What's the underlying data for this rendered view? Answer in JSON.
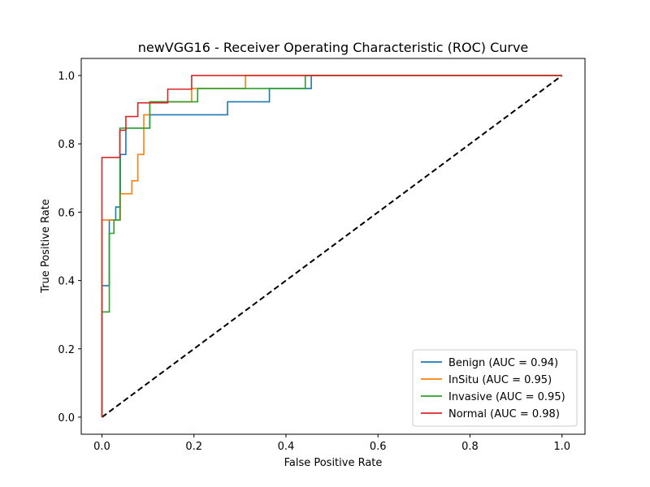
{
  "chart_data": {
    "type": "line",
    "title": "newVGG16 - Receiver Operating Characteristic (ROC) Curve",
    "xlabel": "False Positive Rate",
    "ylabel": "True Positive Rate",
    "xlim": [
      -0.045,
      1.05
    ],
    "ylim": [
      -0.05,
      1.05
    ],
    "xticks": [
      0.0,
      0.2,
      0.4,
      0.6,
      0.8,
      1.0
    ],
    "yticks": [
      0.0,
      0.2,
      0.4,
      0.6,
      0.8,
      1.0
    ],
    "xtick_labels": [
      "0.0",
      "0.2",
      "0.4",
      "0.6",
      "0.8",
      "1.0"
    ],
    "ytick_labels": [
      "0.0",
      "0.2",
      "0.4",
      "0.6",
      "0.8",
      "1.0"
    ],
    "grid": false,
    "legend_position": "lower-right",
    "series": [
      {
        "name": "Benign (AUC = 0.94)",
        "color": "#1f77b4",
        "points": [
          [
            0,
            0
          ],
          [
            0,
            0.385
          ],
          [
            0.016,
            0.385
          ],
          [
            0.016,
            0.538
          ],
          [
            0.016,
            0.577
          ],
          [
            0.03,
            0.577
          ],
          [
            0.03,
            0.615
          ],
          [
            0.04,
            0.615
          ],
          [
            0.04,
            0.769
          ],
          [
            0.052,
            0.769
          ],
          [
            0.052,
            0.846
          ],
          [
            0.104,
            0.846
          ],
          [
            0.104,
            0.885
          ],
          [
            0.273,
            0.885
          ],
          [
            0.273,
            0.923
          ],
          [
            0.364,
            0.923
          ],
          [
            0.364,
            0.962
          ],
          [
            0.455,
            0.962
          ],
          [
            0.455,
            1.0
          ],
          [
            1.0,
            1.0
          ]
        ]
      },
      {
        "name": "InSitu (AUC = 0.95)",
        "color": "#ff7f0e",
        "points": [
          [
            0,
            0
          ],
          [
            0,
            0.577
          ],
          [
            0.04,
            0.577
          ],
          [
            0.04,
            0.654
          ],
          [
            0.065,
            0.654
          ],
          [
            0.065,
            0.692
          ],
          [
            0.078,
            0.692
          ],
          [
            0.078,
            0.769
          ],
          [
            0.091,
            0.769
          ],
          [
            0.091,
            0.885
          ],
          [
            0.104,
            0.885
          ],
          [
            0.104,
            0.923
          ],
          [
            0.195,
            0.923
          ],
          [
            0.195,
            0.962
          ],
          [
            0.312,
            0.962
          ],
          [
            0.312,
            1.0
          ],
          [
            1.0,
            1.0
          ]
        ]
      },
      {
        "name": "Invasive (AUC = 0.95)",
        "color": "#2ca02c",
        "points": [
          [
            0,
            0
          ],
          [
            0,
            0.308
          ],
          [
            0.016,
            0.308
          ],
          [
            0.016,
            0.538
          ],
          [
            0.026,
            0.538
          ],
          [
            0.026,
            0.577
          ],
          [
            0.039,
            0.577
          ],
          [
            0.039,
            0.654
          ],
          [
            0.039,
            0.846
          ],
          [
            0.104,
            0.846
          ],
          [
            0.104,
            0.923
          ],
          [
            0.208,
            0.923
          ],
          [
            0.208,
            0.962
          ],
          [
            0.442,
            0.962
          ],
          [
            0.442,
            1.0
          ],
          [
            1.0,
            1.0
          ]
        ]
      },
      {
        "name": "Normal (AUC = 0.98)",
        "color": "#d62728",
        "points": [
          [
            0,
            0
          ],
          [
            0,
            0.76
          ],
          [
            0.039,
            0.76
          ],
          [
            0.039,
            0.84
          ],
          [
            0.052,
            0.84
          ],
          [
            0.052,
            0.88
          ],
          [
            0.078,
            0.88
          ],
          [
            0.078,
            0.92
          ],
          [
            0.143,
            0.92
          ],
          [
            0.143,
            0.96
          ],
          [
            0.195,
            0.96
          ],
          [
            0.195,
            1.0
          ],
          [
            1.0,
            1.0
          ]
        ]
      }
    ],
    "reference_line": {
      "points": [
        [
          0,
          0
        ],
        [
          1,
          1
        ]
      ],
      "color": "#000000",
      "style": "dashed"
    }
  }
}
